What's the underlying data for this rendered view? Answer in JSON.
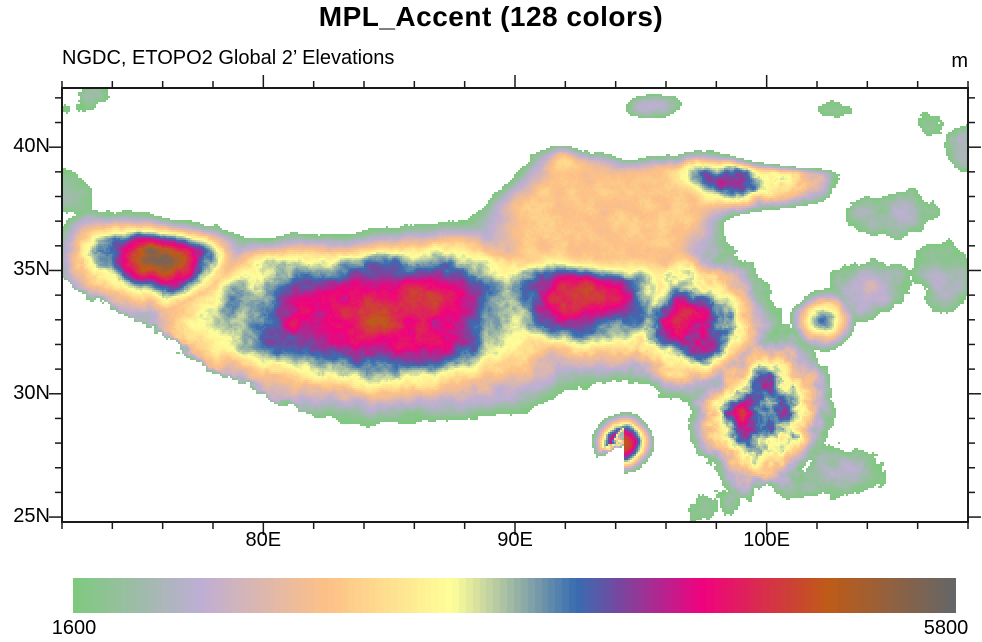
{
  "chart_data": {
    "type": "heatmap",
    "title": "MPL_Accent (128 colors)",
    "subtitle_left": "NGDC, ETOPO2 Global 2’ Elevations",
    "units": "m",
    "map_extent": {
      "lon": [
        72,
        108
      ],
      "lat": [
        24.8,
        42.4
      ]
    },
    "x_axis": {
      "major_ticks": [
        {
          "value": 80,
          "label": "80E"
        },
        {
          "value": 90,
          "label": "90E"
        },
        {
          "value": 100,
          "label": "100E"
        }
      ],
      "minor_tick_interval_deg": 2
    },
    "y_axis": {
      "major_ticks": [
        {
          "value": 25,
          "label": "25N"
        },
        {
          "value": 30,
          "label": "30N"
        },
        {
          "value": 35,
          "label": "35N"
        },
        {
          "value": 40,
          "label": "40N"
        }
      ],
      "minor_tick_interval_deg": 1
    },
    "colorbar": {
      "orientation": "horizontal",
      "min_label": "1600",
      "max_label": "5800",
      "min_value": 1600,
      "max_value": 5800,
      "n_colors": 128,
      "below_min_color": "#ffffff",
      "stops": [
        {
          "t": 0.0,
          "color": "#7fc97f"
        },
        {
          "t": 0.1429,
          "color": "#beaed4"
        },
        {
          "t": 0.2857,
          "color": "#fdc086"
        },
        {
          "t": 0.4286,
          "color": "#ffff99"
        },
        {
          "t": 0.5714,
          "color": "#386cb0"
        },
        {
          "t": 0.7143,
          "color": "#f0027f"
        },
        {
          "t": 0.8571,
          "color": "#bf5b17"
        },
        {
          "t": 1.0,
          "color": "#666666"
        }
      ]
    },
    "frame_color": "#1a1a1a",
    "terrain_model": {
      "note": "approximate elevation field (meters) read from the rendered map; kernels = [lon, lat, rlon, rlat, elev_m, noise_amp_m]",
      "base_elevation_m": 500,
      "mountains": [
        [
          84.5,
          33.2,
          11.0,
          4.4,
          5050,
          650
        ],
        [
          75.8,
          35.6,
          4.2,
          2.8,
          5250,
          800
        ],
        [
          92.5,
          33.8,
          6.0,
          3.4,
          4850,
          700
        ],
        [
          97.0,
          33.0,
          3.6,
          3.4,
          4650,
          1000
        ],
        [
          99.8,
          29.2,
          3.0,
          3.8,
          4350,
          1300
        ],
        [
          74.0,
          41.0,
          2.6,
          1.9,
          4100,
          1000
        ],
        [
          77.0,
          42.0,
          2.0,
          1.0,
          3500,
          900
        ],
        [
          72.8,
          39.3,
          2.0,
          2.2,
          4600,
          800
        ],
        [
          98.5,
          38.6,
          4.6,
          1.4,
          4300,
          1000
        ],
        [
          91.5,
          39.3,
          2.8,
          1.0,
          3800,
          900
        ],
        [
          81.2,
          41.8,
          1.2,
          0.45,
          2150,
          300
        ],
        [
          86.3,
          41.6,
          1.7,
          0.8,
          2300,
          400
        ],
        [
          95.5,
          41.7,
          2.2,
          0.9,
          2200,
          400
        ],
        [
          104.2,
          34.2,
          2.6,
          2.0,
          2550,
          650
        ],
        [
          102.8,
          26.8,
          3.4,
          2.4,
          2250,
          600
        ],
        [
          106.9,
          34.8,
          2.2,
          2.8,
          2100,
          500
        ],
        [
          105.0,
          37.3,
          3.0,
          1.8,
          2150,
          550
        ],
        [
          97.8,
          25.6,
          2.4,
          1.6,
          1900,
          650
        ],
        [
          102.3,
          33.0,
          1.5,
          1.5,
          3600,
          700
        ],
        [
          94.3,
          28.0,
          1.2,
          1.2,
          5000,
          900
        ],
        [
          103.0,
          41.5,
          3.0,
          1.2,
          1750,
          350
        ],
        [
          106.5,
          41.0,
          2.0,
          1.5,
          1800,
          400
        ],
        [
          107.8,
          40.0,
          1.4,
          2.2,
          2050,
          450
        ]
      ],
      "basins": [
        [
          81.0,
          39.8,
          7.4,
          2.5,
          1050
        ],
        [
          90.8,
          42.0,
          2.2,
          1.3,
          700
        ],
        [
          93.6,
          37.2,
          3.2,
          1.5,
          2870
        ],
        [
          105.8,
          30.4,
          2.0,
          1.8,
          480
        ],
        [
          102.0,
          40.1,
          3.0,
          0.7,
          1200
        ]
      ],
      "himalaya_front": [
        [
          72,
          34.6
        ],
        [
          73.5,
          33.8
        ],
        [
          75,
          33.0
        ],
        [
          76.5,
          32.2
        ],
        [
          78,
          31.2
        ],
        [
          80,
          30.1
        ],
        [
          82,
          29.2
        ],
        [
          84,
          28.5
        ],
        [
          86,
          27.9
        ],
        [
          88,
          27.4
        ],
        [
          90,
          27.1
        ],
        [
          92,
          27.2
        ],
        [
          93.5,
          27.8
        ],
        [
          94.3,
          28.6
        ]
      ],
      "lowland_elevation_m": 240
    }
  }
}
